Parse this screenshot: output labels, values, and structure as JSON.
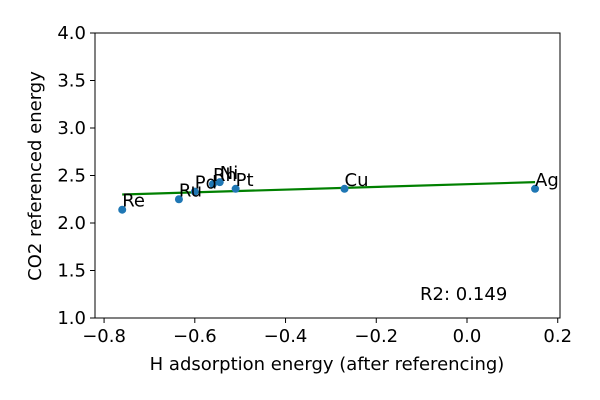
{
  "chart_data": {
    "type": "scatter",
    "xlabel": "H adsorption energy (after referencing)",
    "ylabel": "CO2 referenced energy",
    "xlim": [
      -0.82,
      0.205
    ],
    "ylim": [
      1.0,
      4.0
    ],
    "xticks": [
      -0.8,
      -0.6,
      -0.4,
      -0.2,
      0.0,
      0.2
    ],
    "xtick_labels": [
      "−0.8",
      "−0.6",
      "−0.4",
      "−0.2",
      "0.0",
      "0.2"
    ],
    "yticks": [
      1.0,
      1.5,
      2.0,
      2.5,
      3.0,
      3.5,
      4.0
    ],
    "ytick_labels": [
      "1.0",
      "1.5",
      "2.0",
      "2.5",
      "3.0",
      "3.5",
      "4.0"
    ],
    "grid": false,
    "points": [
      {
        "label": "Re",
        "x": -0.76,
        "y": 2.14
      },
      {
        "label": "Ru",
        "x": -0.635,
        "y": 2.25
      },
      {
        "label": "Pd",
        "x": -0.6,
        "y": 2.33
      },
      {
        "label": "Rh",
        "x": -0.56,
        "y": 2.41
      },
      {
        "label": "Ni",
        "x": -0.545,
        "y": 2.43
      },
      {
        "label": "Pt",
        "x": -0.51,
        "y": 2.36
      },
      {
        "label": "Cu",
        "x": -0.27,
        "y": 2.36
      },
      {
        "label": "Ag",
        "x": 0.15,
        "y": 2.36
      }
    ],
    "fit_line": {
      "x": [
        -0.76,
        0.15
      ],
      "y": [
        2.3,
        2.43
      ]
    },
    "annotation": "R2: 0.149",
    "colors": {
      "points": "#1f77b4",
      "fit": "#008000"
    }
  }
}
